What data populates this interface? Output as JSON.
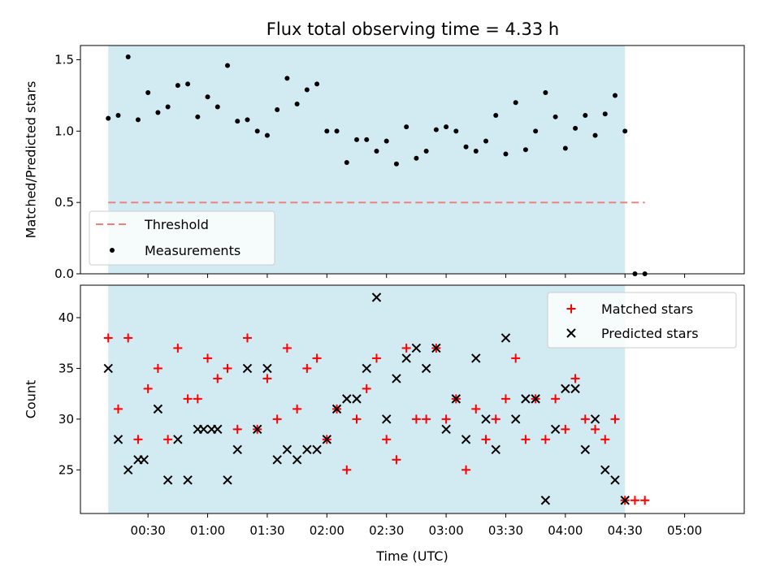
{
  "chart_data": {
    "type": "scatter",
    "title": "Flux total observing time = 4.33 h",
    "x_unit": "minutes since 00:00 UTC",
    "xlim": [
      -4,
      330
    ],
    "xticks": [
      {
        "value": 30,
        "label": "00:30"
      },
      {
        "value": 60,
        "label": "01:00"
      },
      {
        "value": 90,
        "label": "01:30"
      },
      {
        "value": 120,
        "label": "02:00"
      },
      {
        "value": 150,
        "label": "02:30"
      },
      {
        "value": 180,
        "label": "03:00"
      },
      {
        "value": 210,
        "label": "03:30"
      },
      {
        "value": 240,
        "label": "04:00"
      },
      {
        "value": 270,
        "label": "04:30"
      },
      {
        "value": 300,
        "label": "05:00"
      }
    ],
    "xlabel": "Time (UTC)",
    "shaded_span": [
      10,
      270
    ],
    "shade_color": "#add8e6",
    "panels": [
      {
        "ylabel": "Matched/Predicted stars",
        "ylim": [
          0,
          1.6
        ],
        "yticks": [
          0.0,
          0.5,
          1.0,
          1.5
        ],
        "ytick_labels": [
          "0.0",
          "0.5",
          "1.0",
          "1.5"
        ],
        "legend_position": "lower-left",
        "threshold": {
          "name": "Threshold",
          "y": 0.5,
          "x_range": [
            10,
            280
          ],
          "color": "#f08080"
        },
        "series": [
          {
            "name": "Measurements",
            "marker": "dot",
            "color": "#000000",
            "points": [
              [
                10,
                1.09
              ],
              [
                15,
                1.11
              ],
              [
                20,
                1.52
              ],
              [
                25,
                1.08
              ],
              [
                30,
                1.27
              ],
              [
                35,
                1.13
              ],
              [
                40,
                1.17
              ],
              [
                45,
                1.32
              ],
              [
                50,
                1.33
              ],
              [
                55,
                1.1
              ],
              [
                60,
                1.24
              ],
              [
                65,
                1.17
              ],
              [
                70,
                1.46
              ],
              [
                75,
                1.07
              ],
              [
                80,
                1.08
              ],
              [
                85,
                1.0
              ],
              [
                90,
                0.97
              ],
              [
                95,
                1.15
              ],
              [
                100,
                1.37
              ],
              [
                105,
                1.19
              ],
              [
                110,
                1.29
              ],
              [
                115,
                1.33
              ],
              [
                120,
                1.0
              ],
              [
                125,
                1.0
              ],
              [
                130,
                0.78
              ],
              [
                135,
                0.94
              ],
              [
                140,
                0.94
              ],
              [
                145,
                0.86
              ],
              [
                150,
                0.93
              ],
              [
                155,
                0.77
              ],
              [
                160,
                1.03
              ],
              [
                165,
                0.81
              ],
              [
                170,
                0.86
              ],
              [
                175,
                1.01
              ],
              [
                180,
                1.03
              ],
              [
                185,
                1.0
              ],
              [
                190,
                0.89
              ],
              [
                195,
                0.86
              ],
              [
                200,
                0.93
              ],
              [
                205,
                1.11
              ],
              [
                210,
                0.84
              ],
              [
                215,
                1.2
              ],
              [
                220,
                0.87
              ],
              [
                225,
                1.0
              ],
              [
                230,
                1.27
              ],
              [
                235,
                1.1
              ],
              [
                240,
                0.88
              ],
              [
                245,
                1.02
              ],
              [
                250,
                1.11
              ],
              [
                255,
                0.97
              ],
              [
                260,
                1.12
              ],
              [
                265,
                1.25
              ],
              [
                270,
                1.0
              ],
              [
                275,
                0.0
              ],
              [
                280,
                0.0
              ]
            ]
          }
        ]
      },
      {
        "ylabel": "Count",
        "ylim": [
          20.7,
          43.2
        ],
        "yticks": [
          25,
          30,
          35,
          40
        ],
        "ytick_labels": [
          "25",
          "30",
          "35",
          "40"
        ],
        "legend_position": "upper-right",
        "series": [
          {
            "name": "Matched stars",
            "marker": "plus",
            "color": "#ff0000",
            "points": [
              [
                10,
                38
              ],
              [
                15,
                31
              ],
              [
                20,
                38
              ],
              [
                25,
                28
              ],
              [
                30,
                33
              ],
              [
                35,
                35
              ],
              [
                40,
                28
              ],
              [
                45,
                37
              ],
              [
                50,
                32
              ],
              [
                55,
                32
              ],
              [
                60,
                36
              ],
              [
                65,
                34
              ],
              [
                70,
                35
              ],
              [
                75,
                29
              ],
              [
                80,
                38
              ],
              [
                85,
                29
              ],
              [
                90,
                34
              ],
              [
                95,
                30
              ],
              [
                100,
                37
              ],
              [
                105,
                31
              ],
              [
                110,
                35
              ],
              [
                115,
                36
              ],
              [
                120,
                28
              ],
              [
                125,
                31
              ],
              [
                130,
                25
              ],
              [
                135,
                30
              ],
              [
                140,
                33
              ],
              [
                145,
                36
              ],
              [
                150,
                28
              ],
              [
                155,
                26
              ],
              [
                160,
                37
              ],
              [
                165,
                30
              ],
              [
                170,
                30
              ],
              [
                175,
                37
              ],
              [
                180,
                30
              ],
              [
                185,
                32
              ],
              [
                190,
                25
              ],
              [
                195,
                31
              ],
              [
                200,
                28
              ],
              [
                205,
                30
              ],
              [
                210,
                32
              ],
              [
                215,
                36
              ],
              [
                220,
                28
              ],
              [
                225,
                32
              ],
              [
                230,
                28
              ],
              [
                235,
                32
              ],
              [
                240,
                29
              ],
              [
                245,
                34
              ],
              [
                250,
                30
              ],
              [
                255,
                29
              ],
              [
                260,
                28
              ],
              [
                265,
                30
              ],
              [
                270,
                22
              ],
              [
                275,
                22
              ],
              [
                280,
                22
              ]
            ]
          },
          {
            "name": "Predicted stars",
            "marker": "x",
            "color": "#000000",
            "points": [
              [
                10,
                35
              ],
              [
                15,
                28
              ],
              [
                20,
                25
              ],
              [
                25,
                26
              ],
              [
                28,
                26
              ],
              [
                35,
                31
              ],
              [
                40,
                24
              ],
              [
                45,
                28
              ],
              [
                50,
                24
              ],
              [
                55,
                29
              ],
              [
                58,
                29
              ],
              [
                62,
                29
              ],
              [
                65,
                29
              ],
              [
                70,
                24
              ],
              [
                75,
                27
              ],
              [
                80,
                35
              ],
              [
                85,
                29
              ],
              [
                90,
                35
              ],
              [
                95,
                26
              ],
              [
                100,
                27
              ],
              [
                105,
                26
              ],
              [
                110,
                27
              ],
              [
                115,
                27
              ],
              [
                120,
                28
              ],
              [
                125,
                31
              ],
              [
                130,
                32
              ],
              [
                135,
                32
              ],
              [
                140,
                35
              ],
              [
                145,
                42
              ],
              [
                150,
                30
              ],
              [
                155,
                34
              ],
              [
                160,
                36
              ],
              [
                165,
                37
              ],
              [
                170,
                35
              ],
              [
                175,
                37
              ],
              [
                180,
                29
              ],
              [
                185,
                32
              ],
              [
                190,
                28
              ],
              [
                195,
                36
              ],
              [
                200,
                30
              ],
              [
                205,
                27
              ],
              [
                210,
                38
              ],
              [
                215,
                30
              ],
              [
                220,
                32
              ],
              [
                225,
                32
              ],
              [
                230,
                22
              ],
              [
                235,
                29
              ],
              [
                240,
                33
              ],
              [
                245,
                33
              ],
              [
                250,
                27
              ],
              [
                255,
                30
              ],
              [
                260,
                25
              ],
              [
                265,
                24
              ],
              [
                270,
                22
              ]
            ]
          }
        ]
      }
    ]
  }
}
